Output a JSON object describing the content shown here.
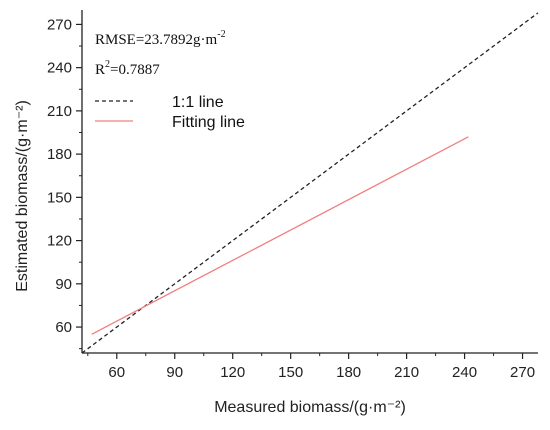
{
  "chart_data": {
    "type": "line",
    "xlabel": "Measured biomass/(g·m⁻²)",
    "ylabel": "Estimated biomass/(g·m⁻²)",
    "xlim": [
      42,
      278
    ],
    "ylim": [
      42,
      280
    ],
    "xticks": [
      60,
      90,
      120,
      150,
      180,
      210,
      240,
      270
    ],
    "yticks": [
      60,
      90,
      120,
      150,
      180,
      210,
      240,
      270
    ],
    "grid": false,
    "legend_position": "top-left",
    "annotations": {
      "rmse_label": "RMSE=23.7892g·m",
      "rmse_superscript": "-2",
      "r2_label": "R",
      "r2_superscript": "2",
      "r2_value": "=0.7887"
    },
    "series": [
      {
        "name": "1:1 line",
        "style": "dashed",
        "color": "#222222",
        "x": [
          42,
          278
        ],
        "y": [
          42,
          278
        ]
      },
      {
        "name": "Fitting line",
        "style": "solid",
        "color": "#f08080",
        "x": [
          47,
          242
        ],
        "y": [
          55,
          192
        ]
      }
    ]
  }
}
